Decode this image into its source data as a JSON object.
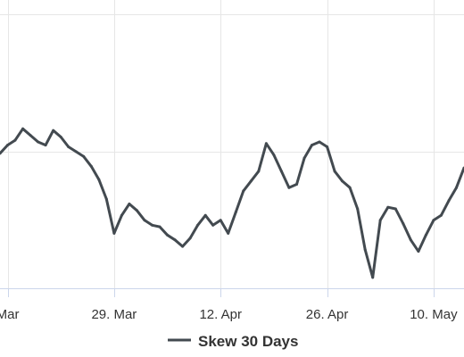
{
  "chart_data": {
    "type": "line",
    "title": "",
    "xlabel": "",
    "ylabel": "",
    "grid": true,
    "legend_position": "bottom-center",
    "x_tick_labels": [
      "Mar",
      "29. Mar",
      "12. Apr",
      "26. Apr",
      "10. May"
    ],
    "x_tick_dates": [
      "2021-03-15",
      "2021-03-29",
      "2021-04-12",
      "2021-04-26",
      "2021-05-10"
    ],
    "x_range": [
      "2021-03-14",
      "2021-05-14"
    ],
    "y_range": [
      0,
      100
    ],
    "series": [
      {
        "name": "Skew 30 Days",
        "color": "#434a50",
        "x": [
          "2021-03-14",
          "2021-03-15",
          "2021-03-16",
          "2021-03-17",
          "2021-03-18",
          "2021-03-19",
          "2021-03-20",
          "2021-03-21",
          "2021-03-22",
          "2021-03-23",
          "2021-03-24",
          "2021-03-25",
          "2021-03-26",
          "2021-03-27",
          "2021-03-28",
          "2021-03-29",
          "2021-03-30",
          "2021-03-31",
          "2021-04-01",
          "2021-04-02",
          "2021-04-03",
          "2021-04-04",
          "2021-04-05",
          "2021-04-06",
          "2021-04-07",
          "2021-04-08",
          "2021-04-09",
          "2021-04-10",
          "2021-04-11",
          "2021-04-12",
          "2021-04-13",
          "2021-04-14",
          "2021-04-15",
          "2021-04-16",
          "2021-04-17",
          "2021-04-18",
          "2021-04-19",
          "2021-04-20",
          "2021-04-21",
          "2021-04-22",
          "2021-04-23",
          "2021-04-24",
          "2021-04-25",
          "2021-04-26",
          "2021-04-27",
          "2021-04-28",
          "2021-04-29",
          "2021-04-30",
          "2021-05-01",
          "2021-05-02",
          "2021-05-03",
          "2021-05-04",
          "2021-05-05",
          "2021-05-06",
          "2021-05-07",
          "2021-05-08",
          "2021-05-09",
          "2021-05-10",
          "2021-05-11",
          "2021-05-12",
          "2021-05-13",
          "2021-05-14"
        ],
        "values": [
          81,
          86,
          89,
          96,
          92,
          88,
          86,
          95,
          91,
          85,
          82,
          79,
          73,
          65,
          53,
          32,
          43,
          50,
          46,
          40,
          37,
          36,
          31,
          28,
          24,
          29,
          37,
          43,
          37,
          40,
          32,
          45,
          58,
          64,
          70,
          87,
          80,
          70,
          60,
          62,
          78,
          86,
          88,
          85,
          70,
          64,
          60,
          47,
          22,
          5,
          40,
          48,
          47,
          38,
          28,
          21,
          31,
          40,
          43,
          52,
          60,
          72
        ]
      }
    ]
  }
}
